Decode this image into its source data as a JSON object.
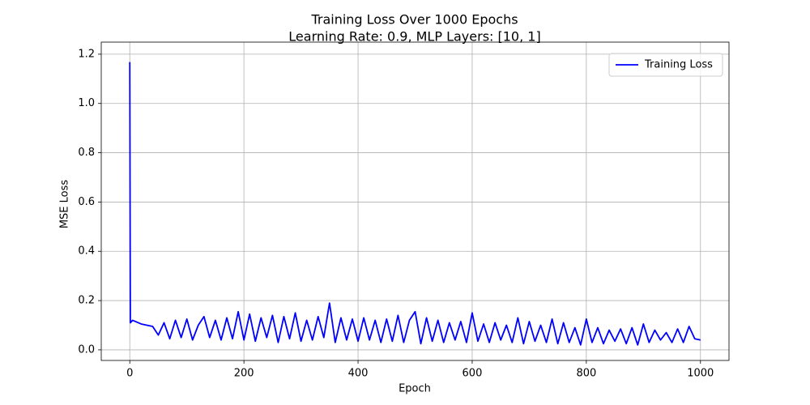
{
  "chart_data": {
    "type": "line",
    "title": "Training Loss Over 1000 Epochs",
    "subtitle": "Learning Rate: 0.9, MLP Layers: [10, 1]",
    "xlabel": "Epoch",
    "ylabel": "MSE Loss",
    "x": [
      0,
      1,
      5,
      10,
      20,
      30,
      40,
      50,
      60,
      70,
      80,
      90,
      100,
      110,
      120,
      130,
      140,
      150,
      160,
      170,
      180,
      190,
      200,
      210,
      220,
      230,
      240,
      250,
      260,
      270,
      280,
      290,
      300,
      310,
      320,
      330,
      340,
      350,
      360,
      370,
      380,
      390,
      400,
      410,
      420,
      430,
      440,
      450,
      460,
      470,
      480,
      490,
      500,
      510,
      520,
      530,
      540,
      550,
      560,
      570,
      580,
      590,
      600,
      610,
      620,
      630,
      640,
      650,
      660,
      670,
      680,
      690,
      700,
      710,
      720,
      730,
      740,
      750,
      760,
      770,
      780,
      790,
      800,
      810,
      820,
      830,
      840,
      850,
      860,
      870,
      880,
      890,
      900,
      910,
      920,
      930,
      940,
      950,
      960,
      970,
      980,
      990,
      1000
    ],
    "series": [
      {
        "name": "Training Loss",
        "color": "#0000ff",
        "values": [
          1.168,
          0.11,
          0.12,
          0.115,
          0.105,
          0.1,
          0.095,
          0.06,
          0.11,
          0.045,
          0.12,
          0.05,
          0.125,
          0.04,
          0.1,
          0.135,
          0.05,
          0.12,
          0.04,
          0.13,
          0.045,
          0.155,
          0.04,
          0.145,
          0.035,
          0.13,
          0.05,
          0.14,
          0.03,
          0.135,
          0.045,
          0.15,
          0.035,
          0.12,
          0.04,
          0.135,
          0.05,
          0.19,
          0.03,
          0.13,
          0.04,
          0.125,
          0.035,
          0.13,
          0.04,
          0.12,
          0.03,
          0.125,
          0.035,
          0.14,
          0.03,
          0.12,
          0.155,
          0.025,
          0.13,
          0.035,
          0.12,
          0.03,
          0.11,
          0.04,
          0.115,
          0.03,
          0.15,
          0.035,
          0.105,
          0.03,
          0.11,
          0.04,
          0.1,
          0.03,
          0.13,
          0.025,
          0.115,
          0.035,
          0.1,
          0.03,
          0.125,
          0.025,
          0.11,
          0.03,
          0.09,
          0.02,
          0.125,
          0.03,
          0.09,
          0.025,
          0.08,
          0.035,
          0.085,
          0.025,
          0.09,
          0.02,
          0.105,
          0.03,
          0.08,
          0.04,
          0.07,
          0.03,
          0.085,
          0.03,
          0.095,
          0.045,
          0.04
        ]
      }
    ],
    "xlim": [
      -50,
      1050
    ],
    "xticks": [
      0,
      200,
      400,
      600,
      800,
      1000
    ],
    "ylim": [
      -0.043,
      1.249
    ],
    "yticks": [
      {
        "value": 0,
        "label": "0.0"
      },
      0.2,
      0.4,
      0.6,
      0.8,
      {
        "value": 1,
        "label": "1.0"
      },
      1.2
    ],
    "grid": true,
    "legend": "upper-right"
  }
}
